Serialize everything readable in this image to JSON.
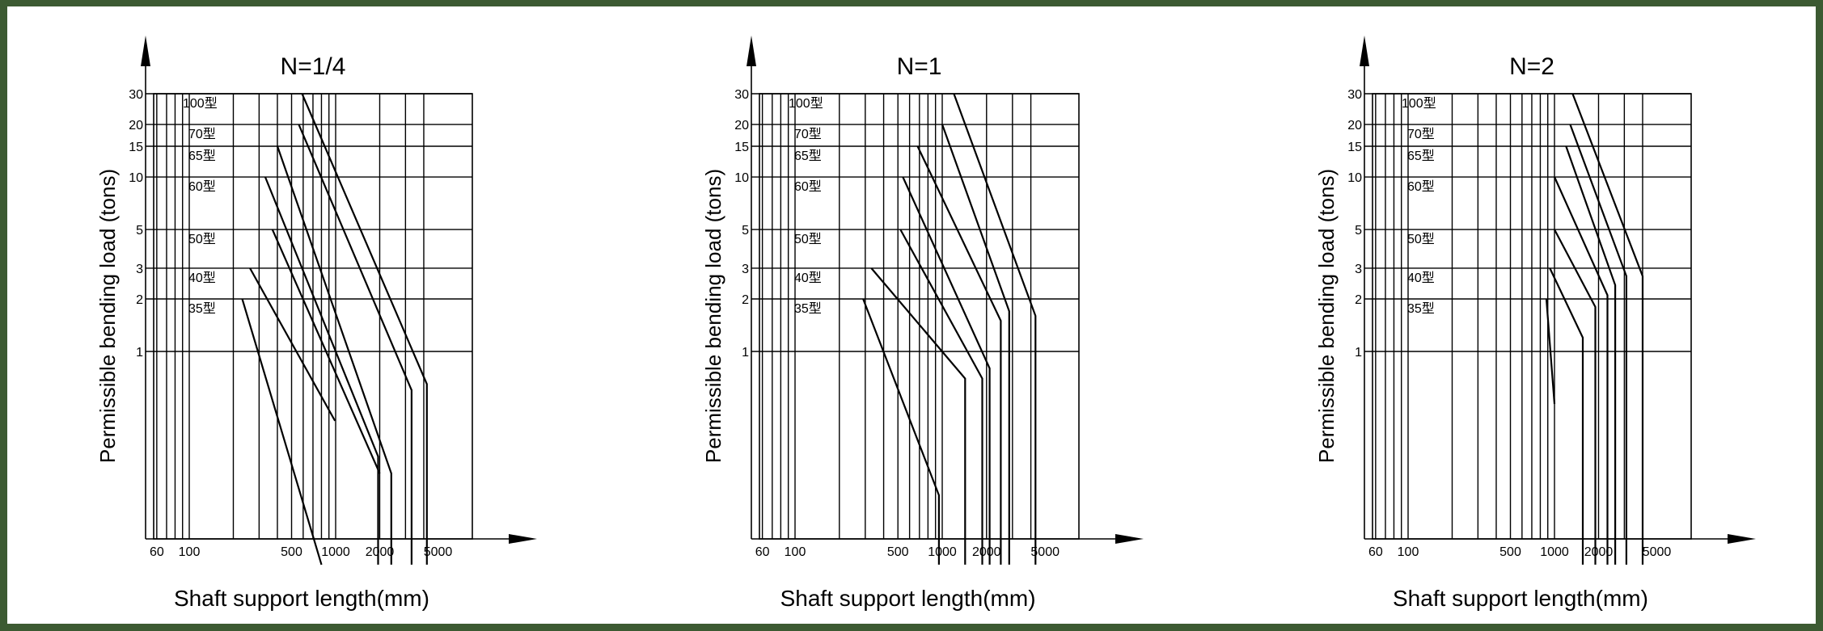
{
  "charts": [
    {
      "title": "N=1/4",
      "ylabel": "Permissible bending load (tons)",
      "xlabel": "Shaft support length(mm)"
    },
    {
      "title": "N=1",
      "ylabel": "Permissible bending load (tons)",
      "xlabel": "Shaft support length(mm)"
    },
    {
      "title": "N=2",
      "ylabel": "Permissible bending load (tons)",
      "xlabel": "Shaft support length(mm)"
    }
  ],
  "chart_data": [
    {
      "type": "line",
      "title": "N=1/4",
      "xlabel": "Shaft support length(mm)",
      "ylabel": "Permissible bending load (tons)",
      "xscale": "log",
      "yscale": "log",
      "x_ticks": [
        "60",
        "100",
        "500",
        "1000",
        "2000",
        "5000"
      ],
      "y_ticks": [
        "1",
        "2",
        "3",
        "5",
        "10",
        "15",
        "20",
        "30"
      ],
      "xlim": [
        60,
        5000
      ],
      "ylim": [
        0.05,
        30
      ],
      "row_labels": [
        "100型",
        "70型",
        "65型",
        "60型",
        "50型",
        "40型",
        "35型"
      ],
      "series": [
        {
          "name": "35型",
          "points": [
            [
              230,
              2
            ],
            [
              800,
              0.06
            ]
          ]
        },
        {
          "name": "40型",
          "points": [
            [
              260,
              3
            ],
            [
              990,
              0.4
            ]
          ]
        },
        {
          "name": "50型",
          "points": [
            [
              370,
              5
            ],
            [
              2000,
              0.2
            ]
          ]
        },
        {
          "name": "60型",
          "points": [
            [
              330,
              10
            ],
            [
              1950,
              0.25
            ],
            [
              1950,
              0.06
            ]
          ]
        },
        {
          "name": "65型",
          "points": [
            [
              400,
              15
            ],
            [
              2400,
              0.2
            ],
            [
              2400,
              0.06
            ]
          ]
        },
        {
          "name": "70型",
          "points": [
            [
              560,
              20
            ],
            [
              3300,
              0.6
            ],
            [
              3300,
              0.06
            ]
          ]
        },
        {
          "name": "100型",
          "points": [
            [
              590,
              30
            ],
            [
              4200,
              0.65
            ],
            [
              4200,
              0.06
            ]
          ]
        }
      ]
    },
    {
      "type": "line",
      "title": "N=1",
      "xlabel": "Shaft support length(mm)",
      "ylabel": "Permissible bending load (tons)",
      "xscale": "log",
      "yscale": "log",
      "x_ticks": [
        "60",
        "100",
        "500",
        "1000",
        "2000",
        "5000"
      ],
      "y_ticks": [
        "1",
        "2",
        "3",
        "5",
        "10",
        "15",
        "20",
        "30"
      ],
      "xlim": [
        60,
        5000
      ],
      "ylim": [
        0.05,
        30
      ],
      "row_labels": [
        "100型",
        "70型",
        "65型",
        "60型",
        "50型",
        "40型",
        "35型"
      ],
      "series": [
        {
          "name": "35型",
          "points": [
            [
              290,
              2
            ],
            [
              950,
              0.15
            ],
            [
              950,
              0.06
            ]
          ]
        },
        {
          "name": "40型",
          "points": [
            [
              330,
              3
            ],
            [
              1430,
              0.7
            ],
            [
              1430,
              0.06
            ]
          ]
        },
        {
          "name": "50型",
          "points": [
            [
              520,
              5
            ],
            [
              1870,
              0.7
            ],
            [
              1870,
              0.06
            ]
          ]
        },
        {
          "name": "60型",
          "points": [
            [
              540,
              10
            ],
            [
              2100,
              0.8
            ],
            [
              2100,
              0.06
            ]
          ]
        },
        {
          "name": "65型",
          "points": [
            [
              680,
              15
            ],
            [
              2500,
              1.5
            ],
            [
              2500,
              0.06
            ]
          ]
        },
        {
          "name": "70型",
          "points": [
            [
              1000,
              20
            ],
            [
              2850,
              1.7
            ],
            [
              2850,
              0.06
            ]
          ]
        },
        {
          "name": "100型",
          "points": [
            [
              1200,
              30
            ],
            [
              4300,
              1.6
            ],
            [
              4300,
              0.06
            ]
          ]
        }
      ]
    },
    {
      "type": "line",
      "title": "N=2",
      "xlabel": "Shaft support length(mm)",
      "ylabel": "Permissible bending load (tons)",
      "xscale": "log",
      "yscale": "log",
      "x_ticks": [
        "60",
        "100",
        "500",
        "1000",
        "2000",
        "5000"
      ],
      "y_ticks": [
        "1",
        "2",
        "3",
        "5",
        "10",
        "15",
        "20",
        "30"
      ],
      "xlim": [
        60,
        5000
      ],
      "ylim": [
        0.05,
        30
      ],
      "row_labels": [
        "100型",
        "70型",
        "65型",
        "60型",
        "50型",
        "40型",
        "35型"
      ],
      "series": [
        {
          "name": "35型",
          "points": [
            [
              880,
              2
            ],
            [
              1000,
              0.5
            ]
          ]
        },
        {
          "name": "40型",
          "points": [
            [
              930,
              3
            ],
            [
              1560,
              1.2
            ],
            [
              1560,
              0.06
            ]
          ]
        },
        {
          "name": "50型",
          "points": [
            [
              1000,
              5
            ],
            [
              1900,
              1.8
            ],
            [
              1900,
              0.06
            ]
          ]
        },
        {
          "name": "60型",
          "points": [
            [
              1000,
              10
            ],
            [
              2300,
              2.1
            ],
            [
              2300,
              0.06
            ]
          ]
        },
        {
          "name": "65型",
          "points": [
            [
              1200,
              15
            ],
            [
              2600,
              2.4
            ],
            [
              2600,
              0.06
            ]
          ]
        },
        {
          "name": "70型",
          "points": [
            [
              1280,
              20
            ],
            [
              3100,
              2.7
            ],
            [
              3100,
              0.06
            ]
          ]
        },
        {
          "name": "100型",
          "points": [
            [
              1330,
              30
            ],
            [
              4000,
              2.7
            ],
            [
              4000,
              0.06
            ]
          ]
        }
      ]
    }
  ]
}
